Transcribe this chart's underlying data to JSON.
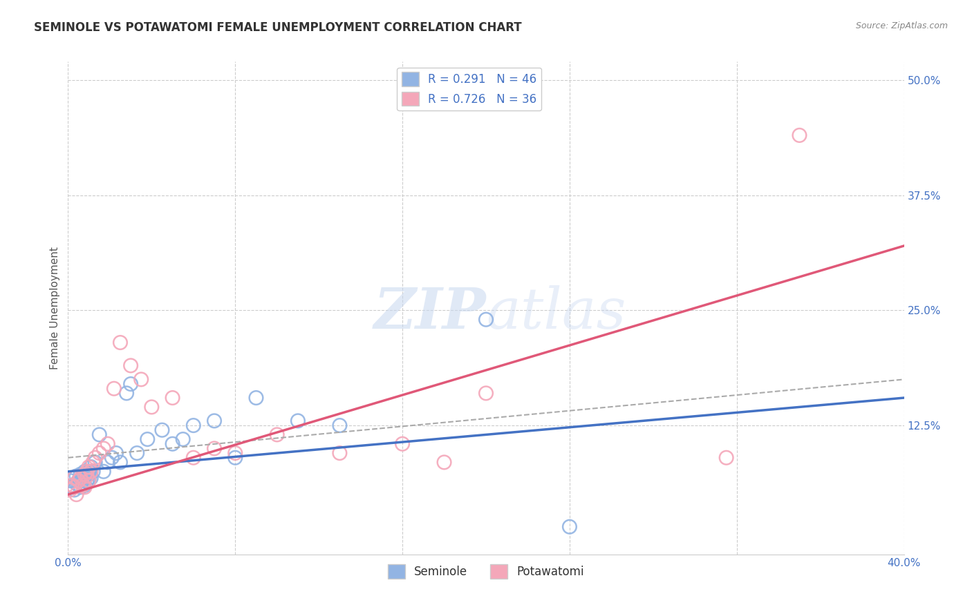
{
  "title": "SEMINOLE VS POTAWATOMI FEMALE UNEMPLOYMENT CORRELATION CHART",
  "source": "Source: ZipAtlas.com",
  "ylabel": "Female Unemployment",
  "watermark_zip": "ZIP",
  "watermark_atlas": "atlas",
  "xlim": [
    0.0,
    0.4
  ],
  "ylim": [
    -0.015,
    0.52
  ],
  "ytick_labels": [
    "50.0%",
    "37.5%",
    "25.0%",
    "12.5%"
  ],
  "ytick_positions": [
    0.5,
    0.375,
    0.25,
    0.125
  ],
  "seminole_R": 0.291,
  "seminole_N": 46,
  "potawatomi_R": 0.726,
  "potawatomi_N": 36,
  "seminole_color": "#92b4e3",
  "potawatomi_color": "#f4a7b9",
  "seminole_line_color": "#4472c4",
  "potawatomi_line_color": "#e05878",
  "background_color": "#ffffff",
  "grid_color": "#cccccc",
  "seminole_x": [
    0.001,
    0.002,
    0.002,
    0.003,
    0.003,
    0.004,
    0.004,
    0.005,
    0.005,
    0.006,
    0.006,
    0.007,
    0.007,
    0.008,
    0.008,
    0.008,
    0.009,
    0.009,
    0.01,
    0.01,
    0.01,
    0.011,
    0.011,
    0.012,
    0.013,
    0.015,
    0.017,
    0.019,
    0.021,
    0.023,
    0.025,
    0.028,
    0.03,
    0.033,
    0.038,
    0.045,
    0.05,
    0.055,
    0.06,
    0.07,
    0.08,
    0.09,
    0.11,
    0.13,
    0.24,
    0.2
  ],
  "seminole_y": [
    0.065,
    0.06,
    0.058,
    0.055,
    0.068,
    0.062,
    0.07,
    0.06,
    0.065,
    0.058,
    0.072,
    0.065,
    0.068,
    0.06,
    0.075,
    0.07,
    0.065,
    0.07,
    0.068,
    0.075,
    0.072,
    0.08,
    0.068,
    0.075,
    0.085,
    0.115,
    0.075,
    0.085,
    0.09,
    0.095,
    0.085,
    0.16,
    0.17,
    0.095,
    0.11,
    0.12,
    0.105,
    0.11,
    0.125,
    0.13,
    0.09,
    0.155,
    0.13,
    0.125,
    0.015,
    0.24
  ],
  "potawatomi_x": [
    0.001,
    0.002,
    0.003,
    0.003,
    0.004,
    0.005,
    0.006,
    0.007,
    0.008,
    0.008,
    0.009,
    0.009,
    0.01,
    0.01,
    0.011,
    0.012,
    0.013,
    0.015,
    0.017,
    0.019,
    0.022,
    0.025,
    0.03,
    0.035,
    0.04,
    0.05,
    0.06,
    0.07,
    0.08,
    0.1,
    0.13,
    0.16,
    0.18,
    0.2,
    0.315,
    0.35
  ],
  "potawatomi_y": [
    0.055,
    0.06,
    0.058,
    0.068,
    0.05,
    0.065,
    0.068,
    0.06,
    0.058,
    0.072,
    0.07,
    0.075,
    0.065,
    0.08,
    0.075,
    0.085,
    0.09,
    0.095,
    0.1,
    0.105,
    0.165,
    0.215,
    0.19,
    0.175,
    0.145,
    0.155,
    0.09,
    0.1,
    0.095,
    0.115,
    0.095,
    0.105,
    0.085,
    0.16,
    0.09,
    0.44
  ],
  "sem_trend_x0": 0.0,
  "sem_trend_y0": 0.075,
  "sem_trend_x1": 0.4,
  "sem_trend_y1": 0.155,
  "pot_trend_x0": 0.0,
  "pot_trend_y0": 0.05,
  "pot_trend_x1": 0.4,
  "pot_trend_y1": 0.32,
  "dashed_trend_x0": 0.0,
  "dashed_trend_y0": 0.09,
  "dashed_trend_x1": 0.4,
  "dashed_trend_y1": 0.175
}
